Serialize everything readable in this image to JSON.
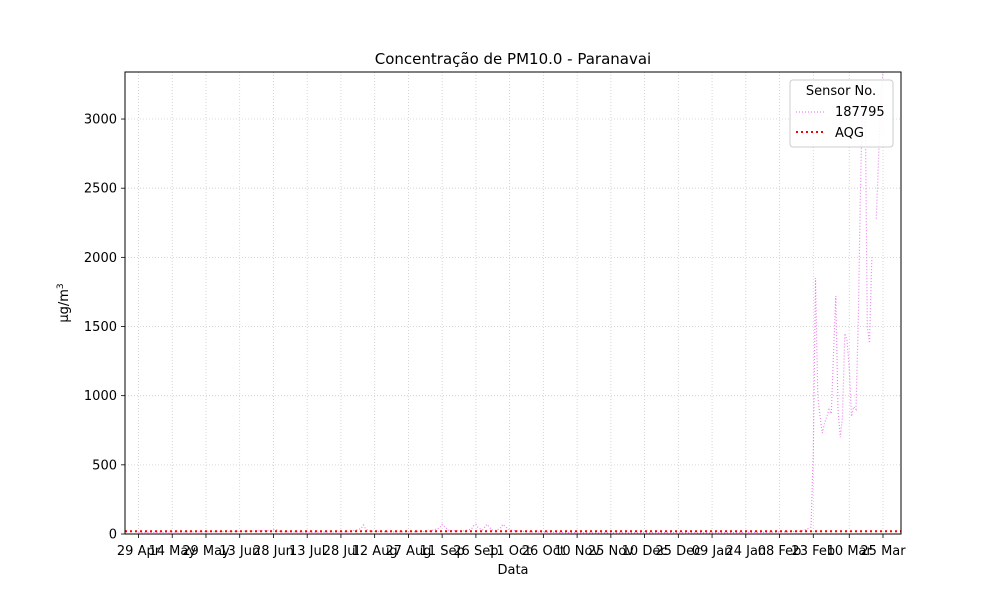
{
  "chart_data": {
    "type": "line",
    "title": "Concentração de PM10.0 - Paranavai",
    "xlabel": "Data",
    "ylabel": "μg/m³",
    "ylabel_base": "μg/m",
    "ylabel_sup": "3",
    "ylim": [
      0,
      3340
    ],
    "xlim": [
      "2023-04-23",
      "2024-04-02"
    ],
    "grid": true,
    "legend": {
      "title": "Sensor No.",
      "placement": "top-right"
    },
    "y_ticks": [
      0,
      500,
      1000,
      1500,
      2000,
      2500,
      3000
    ],
    "x_ticks": [
      {
        "date": "2023-04-29",
        "label": "29 Apr"
      },
      {
        "date": "2023-05-14",
        "label": "14 May"
      },
      {
        "date": "2023-05-29",
        "label": "29 May"
      },
      {
        "date": "2023-06-13",
        "label": "13 Jun"
      },
      {
        "date": "2023-06-28",
        "label": "28 Jun"
      },
      {
        "date": "2023-07-13",
        "label": "13 Jul"
      },
      {
        "date": "2023-07-28",
        "label": "28 Jul"
      },
      {
        "date": "2023-08-12",
        "label": "12 Aug"
      },
      {
        "date": "2023-08-27",
        "label": "27 Aug"
      },
      {
        "date": "2023-09-11",
        "label": "11 Sep"
      },
      {
        "date": "2023-09-26",
        "label": "26 Sep"
      },
      {
        "date": "2023-10-11",
        "label": "11 Oct"
      },
      {
        "date": "2023-10-26",
        "label": "26 Oct"
      },
      {
        "date": "2023-11-10",
        "label": "10 Nov"
      },
      {
        "date": "2023-11-25",
        "label": "25 Nov"
      },
      {
        "date": "2023-12-10",
        "label": "10 Dec"
      },
      {
        "date": "2023-12-25",
        "label": "25 Dec"
      },
      {
        "date": "2024-01-09",
        "label": "09 Jan"
      },
      {
        "date": "2024-01-24",
        "label": "24 Jan"
      },
      {
        "date": "2024-02-08",
        "label": "08 Feb"
      },
      {
        "date": "2024-02-23",
        "label": "23 Feb"
      },
      {
        "date": "2024-03-10",
        "label": "10 Mar"
      },
      {
        "date": "2024-03-25",
        "label": "25 Mar"
      }
    ],
    "series": [
      {
        "name": "187795",
        "color": "#ee82ee",
        "style": "dotted",
        "x": [
          "2023-04-29",
          "2023-05-10",
          "2023-05-25",
          "2023-06-10",
          "2023-06-27",
          "2023-06-29",
          "2023-07-01",
          "2023-07-15",
          "2023-08-01",
          "2023-08-06",
          "2023-08-07",
          "2023-08-08",
          "2023-08-10",
          "2023-08-20",
          "2023-09-05",
          "2023-09-10",
          "2023-09-11",
          "2023-09-12",
          "2023-09-14",
          "2023-09-20",
          "2023-09-24",
          "2023-09-25",
          "2023-09-26",
          "2023-09-27",
          "2023-09-29",
          "2023-10-01",
          "2023-10-02",
          "2023-10-03",
          "2023-10-05",
          "2023-10-07",
          "2023-10-08",
          "2023-10-09",
          "2023-10-11",
          "2023-10-15",
          "2023-10-20",
          "2023-11-05",
          "2023-11-20",
          "2023-12-05",
          "2023-12-20",
          "2024-01-05",
          "2024-01-20",
          "2024-02-01",
          "2024-02-10",
          "2024-02-18",
          "2024-02-22",
          "2024-02-23",
          "2024-02-24",
          "2024-02-25",
          "2024-02-26",
          "2024-02-27",
          "2024-02-28",
          "2024-02-29",
          "2024-03-01",
          "2024-03-02",
          "2024-03-03",
          "2024-03-04",
          "2024-03-05",
          "2024-03-06",
          "2024-03-07",
          "2024-03-08",
          "2024-03-09",
          "2024-03-10",
          "2024-03-11",
          "2024-03-12",
          "2024-03-13",
          "2024-03-14",
          "2024-03-15",
          "2024-03-16",
          "2024-03-17",
          "2024-03-18",
          "2024-03-19",
          "2024-03-20"
        ],
        "y": [
          10,
          12,
          15,
          18,
          25,
          35,
          15,
          12,
          15,
          40,
          65,
          35,
          20,
          15,
          18,
          45,
          70,
          55,
          25,
          20,
          35,
          60,
          70,
          45,
          30,
          70,
          50,
          30,
          25,
          45,
          70,
          55,
          30,
          20,
          15,
          10,
          8,
          8,
          10,
          8,
          10,
          12,
          15,
          20,
          50,
          600,
          1850,
          1000,
          850,
          730,
          800,
          850,
          900,
          870,
          1300,
          1720,
          900,
          700,
          850,
          1450,
          1400,
          1200,
          850,
          920,
          900,
          1550,
          2500,
          3250,
          3280,
          1500,
          1380,
          2000
        ]
      }
    ],
    "extra_segments": [
      {
        "x": [
          "2024-03-22",
          "2024-03-23",
          "2024-03-24",
          "2024-03-25"
        ],
        "y": [
          2280,
          2700,
          3150,
          3340
        ]
      }
    ],
    "reference_lines": [
      {
        "name": "AQG",
        "value": 20,
        "color": "#ff0000",
        "style": "dotted"
      }
    ]
  }
}
